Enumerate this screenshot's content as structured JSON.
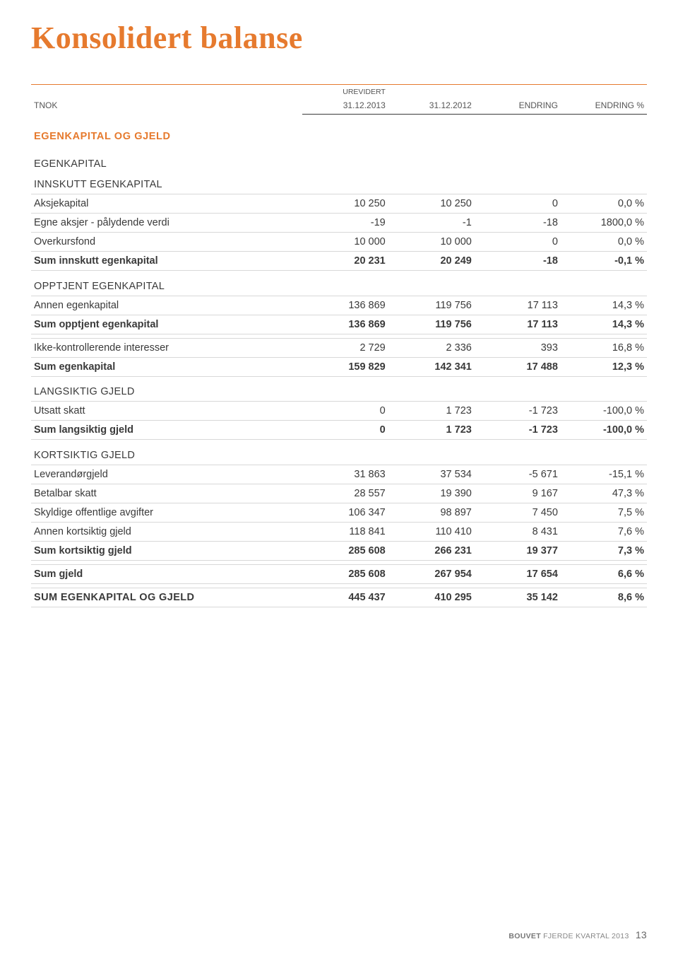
{
  "title": "Konsolidert balanse",
  "headers": {
    "tnok": "TNOK",
    "urevidert": "UREVIDERT",
    "c2": "31.12.2013",
    "c3": "31.12.2012",
    "c4": "ENDRING",
    "c5": "ENDRING %"
  },
  "colors": {
    "accent": "#e67a2e",
    "text": "#3a3a3a",
    "rule": "#d8d8d8"
  },
  "sections": {
    "main_header": "EGENKAPITAL OG GJELD",
    "innskutt": {
      "h1": "EGENKAPITAL",
      "h2": "INNSKUTT EGENKAPITAL",
      "rows": [
        {
          "l": "Aksjekapital",
          "a": "10 250",
          "b": "10 250",
          "c": "0",
          "d": "0,0 %"
        },
        {
          "l": "Egne aksjer - pålydende verdi",
          "a": "-19",
          "b": "-1",
          "c": "-18",
          "d": "1800,0 %"
        },
        {
          "l": "Overkursfond",
          "a": "10 000",
          "b": "10 000",
          "c": "0",
          "d": "0,0 %"
        }
      ],
      "sum": {
        "l": "Sum innskutt egenkapital",
        "a": "20 231",
        "b": "20 249",
        "c": "-18",
        "d": "-0,1 %"
      }
    },
    "opptjent": {
      "h": "OPPTJENT EGENKAPITAL",
      "rows": [
        {
          "l": "Annen egenkapital",
          "a": "136 869",
          "b": "119 756",
          "c": "17 113",
          "d": "14,3 %"
        }
      ],
      "sum": {
        "l": "Sum opptjent egenkapital",
        "a": "136 869",
        "b": "119 756",
        "c": "17 113",
        "d": "14,3 %"
      }
    },
    "ikke": {
      "l": "Ikke-kontrollerende interesser",
      "a": "2 729",
      "b": "2 336",
      "c": "393",
      "d": "16,8 %"
    },
    "sum_ek": {
      "l": "Sum egenkapital",
      "a": "159 829",
      "b": "142 341",
      "c": "17 488",
      "d": "12,3 %"
    },
    "langsiktig": {
      "h": "LANGSIKTIG GJELD",
      "rows": [
        {
          "l": "Utsatt skatt",
          "a": "0",
          "b": "1 723",
          "c": "-1 723",
          "d": "-100,0 %"
        }
      ],
      "sum": {
        "l": "Sum langsiktig gjeld",
        "a": "0",
        "b": "1 723",
        "c": "-1 723",
        "d": "-100,0 %"
      }
    },
    "kortsiktig": {
      "h": "KORTSIKTIG GJELD",
      "rows": [
        {
          "l": "Leverandørgjeld",
          "a": "31 863",
          "b": "37 534",
          "c": "-5 671",
          "d": "-15,1 %"
        },
        {
          "l": "Betalbar skatt",
          "a": "28 557",
          "b": "19 390",
          "c": "9 167",
          "d": "47,3 %"
        },
        {
          "l": "Skyldige offentlige avgifter",
          "a": "106 347",
          "b": "98 897",
          "c": "7 450",
          "d": "7,5 %"
        },
        {
          "l": "Annen kortsiktig gjeld",
          "a": "118 841",
          "b": "110 410",
          "c": "8 431",
          "d": "7,6 %"
        }
      ],
      "sum": {
        "l": "Sum kortsiktig gjeld",
        "a": "285 608",
        "b": "266 231",
        "c": "19 377",
        "d": "7,3 %"
      }
    },
    "sum_gjeld": {
      "l": "Sum gjeld",
      "a": "285 608",
      "b": "267 954",
      "c": "17 654",
      "d": "6,6 %"
    },
    "total": {
      "l": "SUM EGENKAPITAL OG GJELD",
      "a": "445 437",
      "b": "410 295",
      "c": "35 142",
      "d": "8,6 %"
    }
  },
  "footer": {
    "brand": "BOUVET",
    "rest": " FJERDE KVARTAL 2013",
    "page": "13"
  }
}
